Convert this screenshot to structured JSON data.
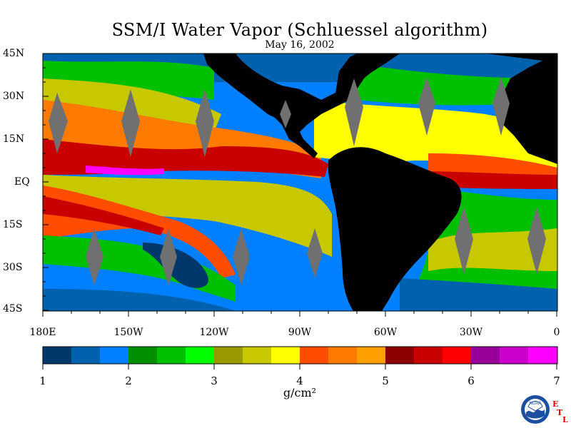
{
  "title": "SSM/I Water Vapor (Schluessel algorithm)",
  "date": "May 16, 2002",
  "map": {
    "lat_labels": [
      "45N",
      "30N",
      "15N",
      "EQ",
      "15S",
      "30S",
      "45S"
    ],
    "lon_labels": [
      "180E",
      "150W",
      "120W",
      "90W",
      "60W",
      "30W",
      "0"
    ],
    "lat_range": [
      -45,
      45
    ],
    "lon_range": [
      -180,
      0
    ],
    "land_color": "#000000",
    "swath_gap_color": "#707070"
  },
  "colorbar": {
    "colors": [
      "#00386b",
      "#0062ae",
      "#0080ff",
      "#008f00",
      "#00c000",
      "#00ff00",
      "#9a9a00",
      "#c8c800",
      "#ffff00",
      "#ff4d00",
      "#ff7a00",
      "#ffa000",
      "#8c0000",
      "#c80000",
      "#ff0000",
      "#990099",
      "#cc00cc",
      "#ff00ff"
    ],
    "tick_labels": [
      "1",
      "2",
      "3",
      "4",
      "5",
      "6",
      "7"
    ],
    "range": [
      1,
      7
    ],
    "units_label": "g/cm²"
  },
  "logo": {
    "agency_text": "NOAA",
    "lab_letters": [
      "E",
      "T",
      "L"
    ]
  }
}
